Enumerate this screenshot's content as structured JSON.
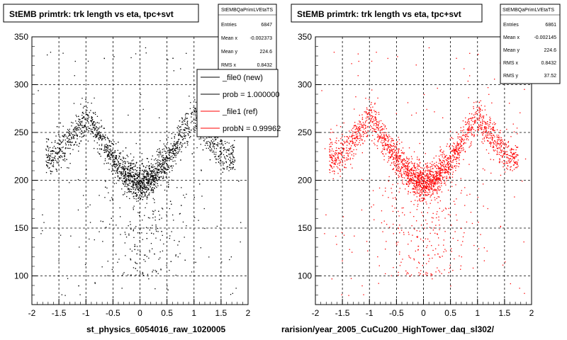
{
  "chart_data": [
    {
      "type": "scatter",
      "title": "StEMB primtrk: trk length vs eta, tpc+svt",
      "xlabel": "st_physics_6054016_raw_1020005",
      "ylabel": "",
      "xlim": [
        -2,
        2
      ],
      "ylim": [
        70,
        350
      ],
      "xticks": [
        "-2",
        "-1.5",
        "-1",
        "-0.5",
        "0",
        "0.5",
        "1",
        "1.5",
        "2"
      ],
      "yticks": [
        "100",
        "150",
        "200",
        "250",
        "300",
        "350"
      ],
      "grid": true,
      "color": "#000000",
      "distribution": {
        "description_curve_eta": [
          -1.6,
          -1.4,
          -1.2,
          -1.0,
          -0.8,
          -0.6,
          -0.4,
          -0.2,
          0.0,
          0.2,
          0.4,
          0.6,
          0.8,
          1.0,
          1.2,
          1.4,
          1.6
        ],
        "description_curve_length": [
          225,
          235,
          250,
          265,
          250,
          230,
          215,
          203,
          198,
          203,
          215,
          230,
          250,
          265,
          250,
          235,
          225
        ]
      },
      "stats": {
        "box_title": "StEMBQaPrimLVEtaTS",
        "entries_label": "Entries",
        "entries": "6847",
        "mean_label": "Mean x",
        "mean_x": "-0.002373",
        "mean_y_label": "Mean y",
        "mean_y": "224.6",
        "rms_label": "RMS x",
        "rms_x": "0.8432",
        "rms_y_label": "RMS y",
        "rms_y": ""
      },
      "legend": [
        {
          "label": "_file0 (new)",
          "color": "#000000"
        },
        {
          "label": "prob = 1.000000",
          "color": "#000000"
        },
        {
          "label": "_file1 (ref)",
          "color": "#ff0000"
        },
        {
          "label": "probN = 0.99962",
          "color": "#ff0000"
        }
      ]
    },
    {
      "type": "scatter",
      "title": "StEMB primtrk: trk length vs eta, tpc+svt",
      "xlabel": "rarision/year_2005_CuCu200_HighTower_daq_sl302/",
      "ylabel": "",
      "xlim": [
        -2,
        2
      ],
      "ylim": [
        70,
        350
      ],
      "xticks": [
        "-2",
        "-1.5",
        "-1",
        "-0.5",
        "0",
        "0.5",
        "1",
        "1.5",
        "2"
      ],
      "yticks": [
        "100",
        "150",
        "200",
        "250",
        "300",
        "350"
      ],
      "grid": true,
      "color": "#ff0000",
      "stats": {
        "box_title": "StEMBQaPrimLVEtaTS",
        "entries_label": "Entries",
        "entries": "6861",
        "mean_label": "Mean x",
        "mean_x": "-0.002145",
        "mean_y_label": "Mean y",
        "mean_y": "224.6",
        "rms_label": "RMS x",
        "rms_x": "0.8432",
        "rms_y_label": "RMS y",
        "rms_y": "37.52"
      }
    }
  ]
}
